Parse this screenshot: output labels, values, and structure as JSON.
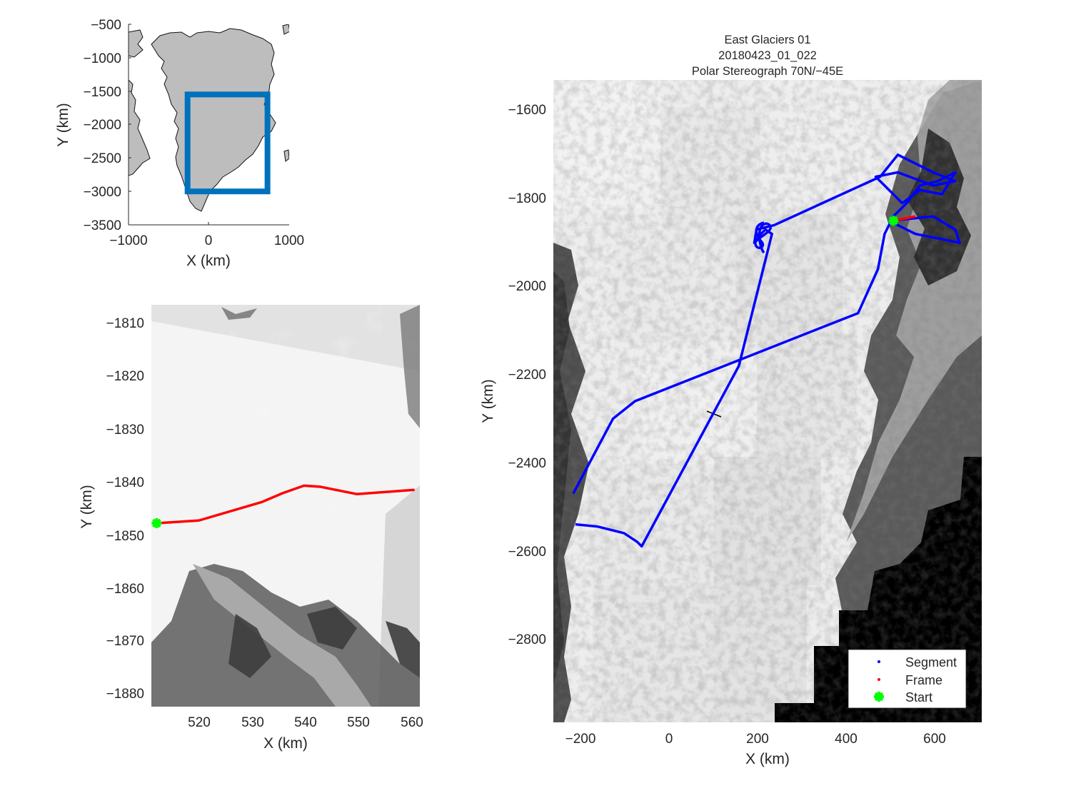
{
  "figure": {
    "overview": {
      "xlabel": "X (km)",
      "ylabel": "Y (km)",
      "xticks": [
        "−1000",
        "0",
        "1000"
      ],
      "yticks": [
        "−500",
        "−1000",
        "−1500",
        "−2000",
        "−2500",
        "−3000",
        "−3500"
      ],
      "xlim": [
        -1000,
        1000
      ],
      "ylim": [
        -3500,
        -500
      ],
      "box_color": "#0072BD",
      "land_color": "#bdbdbd"
    },
    "zoom": {
      "xlabel": "X (km)",
      "ylabel": "Y (km)",
      "xticks": [
        "520",
        "530",
        "540",
        "550",
        "560"
      ],
      "yticks": [
        "−1810",
        "−1820",
        "−1830",
        "−1840",
        "−1850",
        "−1860",
        "−1870",
        "−1880"
      ]
    },
    "main": {
      "title_line1": "East Glaciers 01",
      "title_line2": "20180423_01_022",
      "title_line3": "Polar Stereograph 70N/−45E",
      "xlabel": "X (km)",
      "ylabel": "Y (km)",
      "xticks": [
        "−200",
        "0",
        "200",
        "400",
        "600"
      ],
      "yticks": [
        "−1600",
        "−1800",
        "−2000",
        "−2200",
        "−2400",
        "−2600",
        "−2800"
      ],
      "legend": {
        "segment": "Segment",
        "frame": "Frame",
        "start": "Start"
      },
      "colors": {
        "segment": "#0000ff",
        "frame": "#ff0000",
        "start": "#00ff00"
      }
    }
  },
  "chart_data": [
    {
      "type": "map",
      "panel": "overview",
      "xlim": [
        -1000,
        1000
      ],
      "ylim": [
        -3500,
        -500
      ],
      "xlabel": "X (km)",
      "ylabel": "Y (km)",
      "box": {
        "x": [
          -265,
          730
        ],
        "y": [
          -3000,
          -1550
        ]
      }
    },
    {
      "type": "line",
      "panel": "zoom",
      "xlabel": "X (km)",
      "ylabel": "Y (km)",
      "xlim": [
        511,
        562
      ],
      "ylim": [
        -1883,
        -1807
      ],
      "series": [
        {
          "name": "Frame",
          "x": [
            512,
            520,
            532,
            536,
            540,
            543,
            550,
            561
          ],
          "y": [
            -1848.3,
            -1847.8,
            -1844.3,
            -1842.6,
            -1841.2,
            -1841.4,
            -1842.8,
            -1842
          ]
        },
        {
          "name": "Start",
          "x": [
            512
          ],
          "y": [
            -1848.3
          ]
        }
      ]
    },
    {
      "type": "line",
      "panel": "main",
      "title": "East Glaciers 01 / 20180423_01_022 / Polar Stereograph 70N/−45E",
      "xlabel": "X (km)",
      "ylabel": "Y (km)",
      "xlim": [
        -260,
        710
      ],
      "ylim": [
        -2990,
        -1530
      ],
      "series": [
        {
          "name": "Segment",
          "x": [
            -215,
            -125,
            -75,
            430,
            475,
            490,
            505,
            600,
            650,
            660,
            560,
            500,
            540,
            570,
            610,
            650,
            620,
            570,
            530,
            500,
            470,
            520,
            600,
            650,
            600,
            520,
            480,
            240,
            200,
            195,
            210,
            220,
            235,
            160,
            -60,
            -70,
            -100,
            -160,
            -210
          ],
          "y": [
            -2470,
            -2300,
            -2260,
            -2060,
            -1960,
            -1880,
            -1850,
            -1840,
            -1870,
            -1900,
            -1880,
            -1850,
            -1810,
            -1770,
            -1760,
            -1740,
            -1790,
            -1780,
            -1810,
            -1780,
            -1750,
            -1740,
            -1770,
            -1760,
            -1740,
            -1700,
            -1750,
            -1860,
            -1870,
            -1900,
            -1880,
            -1870,
            -1880,
            -2180,
            -2590,
            -2580,
            -2560,
            -2545,
            -2540
          ]
        },
        {
          "name": "Frame",
          "x": [
            510,
            535,
            560
          ],
          "y": [
            -1850,
            -1845,
            -1840
          ]
        },
        {
          "name": "Start",
          "x": [
            510
          ],
          "y": [
            -1850
          ]
        }
      ]
    }
  ]
}
